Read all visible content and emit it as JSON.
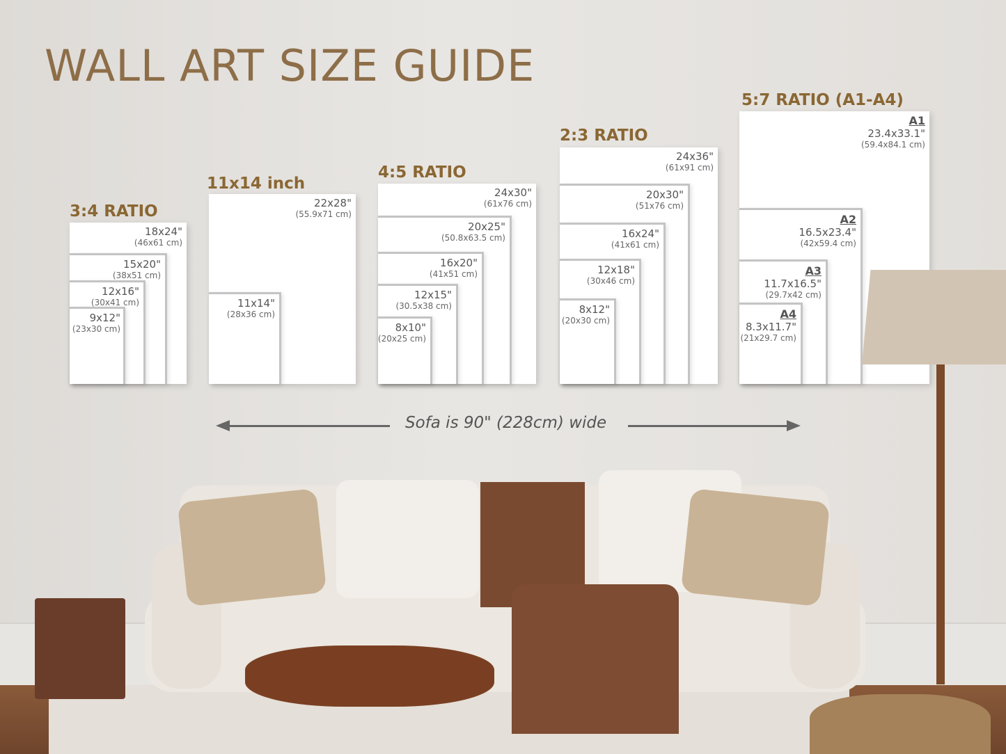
{
  "title": "WALL ART SIZE GUIDE",
  "groups": [
    {
      "heading": "3:4 RATIO",
      "sizes": [
        {
          "in": "18x24\"",
          "cm": "(46x61 cm)"
        },
        {
          "in": "15x20\"",
          "cm": "(38x51 cm)"
        },
        {
          "in": "12x16\"",
          "cm": "(30x41 cm)"
        },
        {
          "in": "9x12\"",
          "cm": "(23x30 cm)"
        }
      ]
    },
    {
      "heading": "11x14 inch",
      "sizes": [
        {
          "in": "22x28\"",
          "cm": "(55.9x71 cm)"
        },
        {
          "in": "11x14\"",
          "cm": "(28x36 cm)"
        }
      ]
    },
    {
      "heading": "4:5 RATIO",
      "sizes": [
        {
          "in": "24x30\"",
          "cm": "(61x76 cm)"
        },
        {
          "in": "20x25\"",
          "cm": "(50.8x63.5 cm)"
        },
        {
          "in": "16x20\"",
          "cm": "(41x51 cm)"
        },
        {
          "in": "12x15\"",
          "cm": "(30.5x38 cm)"
        },
        {
          "in": "8x10\"",
          "cm": "(20x25 cm)"
        }
      ]
    },
    {
      "heading": "2:3 RATIO",
      "sizes": [
        {
          "in": "24x36\"",
          "cm": "(61x91 cm)"
        },
        {
          "in": "20x30\"",
          "cm": "(51x76 cm)"
        },
        {
          "in": "16x24\"",
          "cm": "(41x61 cm)"
        },
        {
          "in": "12x18\"",
          "cm": "(30x46 cm)"
        },
        {
          "in": "8x12\"",
          "cm": "(20x30 cm)"
        }
      ]
    },
    {
      "heading": "5:7 RATIO (A1-A4)",
      "sizes": [
        {
          "code": "A1",
          "in": "23.4x33.1\"",
          "cm": "(59.4x84.1 cm)"
        },
        {
          "code": "A2",
          "in": "16.5x23.4\"",
          "cm": "(42x59.4 cm)"
        },
        {
          "code": "A3",
          "in": "11.7x16.5\"",
          "cm": "(29.7x42 cm)"
        },
        {
          "code": "A4",
          "in": "8.3x11.7\"",
          "cm": "(21x29.7 cm)"
        }
      ]
    }
  ],
  "sofa_note": "Sofa is 90\" (228cm) wide",
  "colors": {
    "heading": "#8a6733",
    "title": "#8d6e48",
    "frame_border": "#c4c4c4"
  }
}
